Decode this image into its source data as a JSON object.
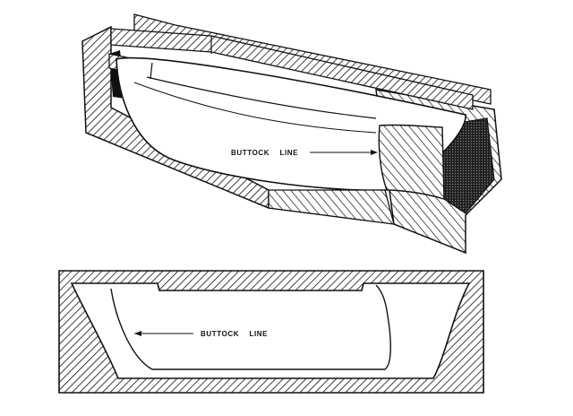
{
  "figure": {
    "top_view": {
      "label": "BUTTOCK    LINE"
    },
    "bottom_view": {
      "label": "BUTTOCK    LINE"
    },
    "colors": {
      "ink": "#111111",
      "paper": "#ffffff"
    }
  }
}
